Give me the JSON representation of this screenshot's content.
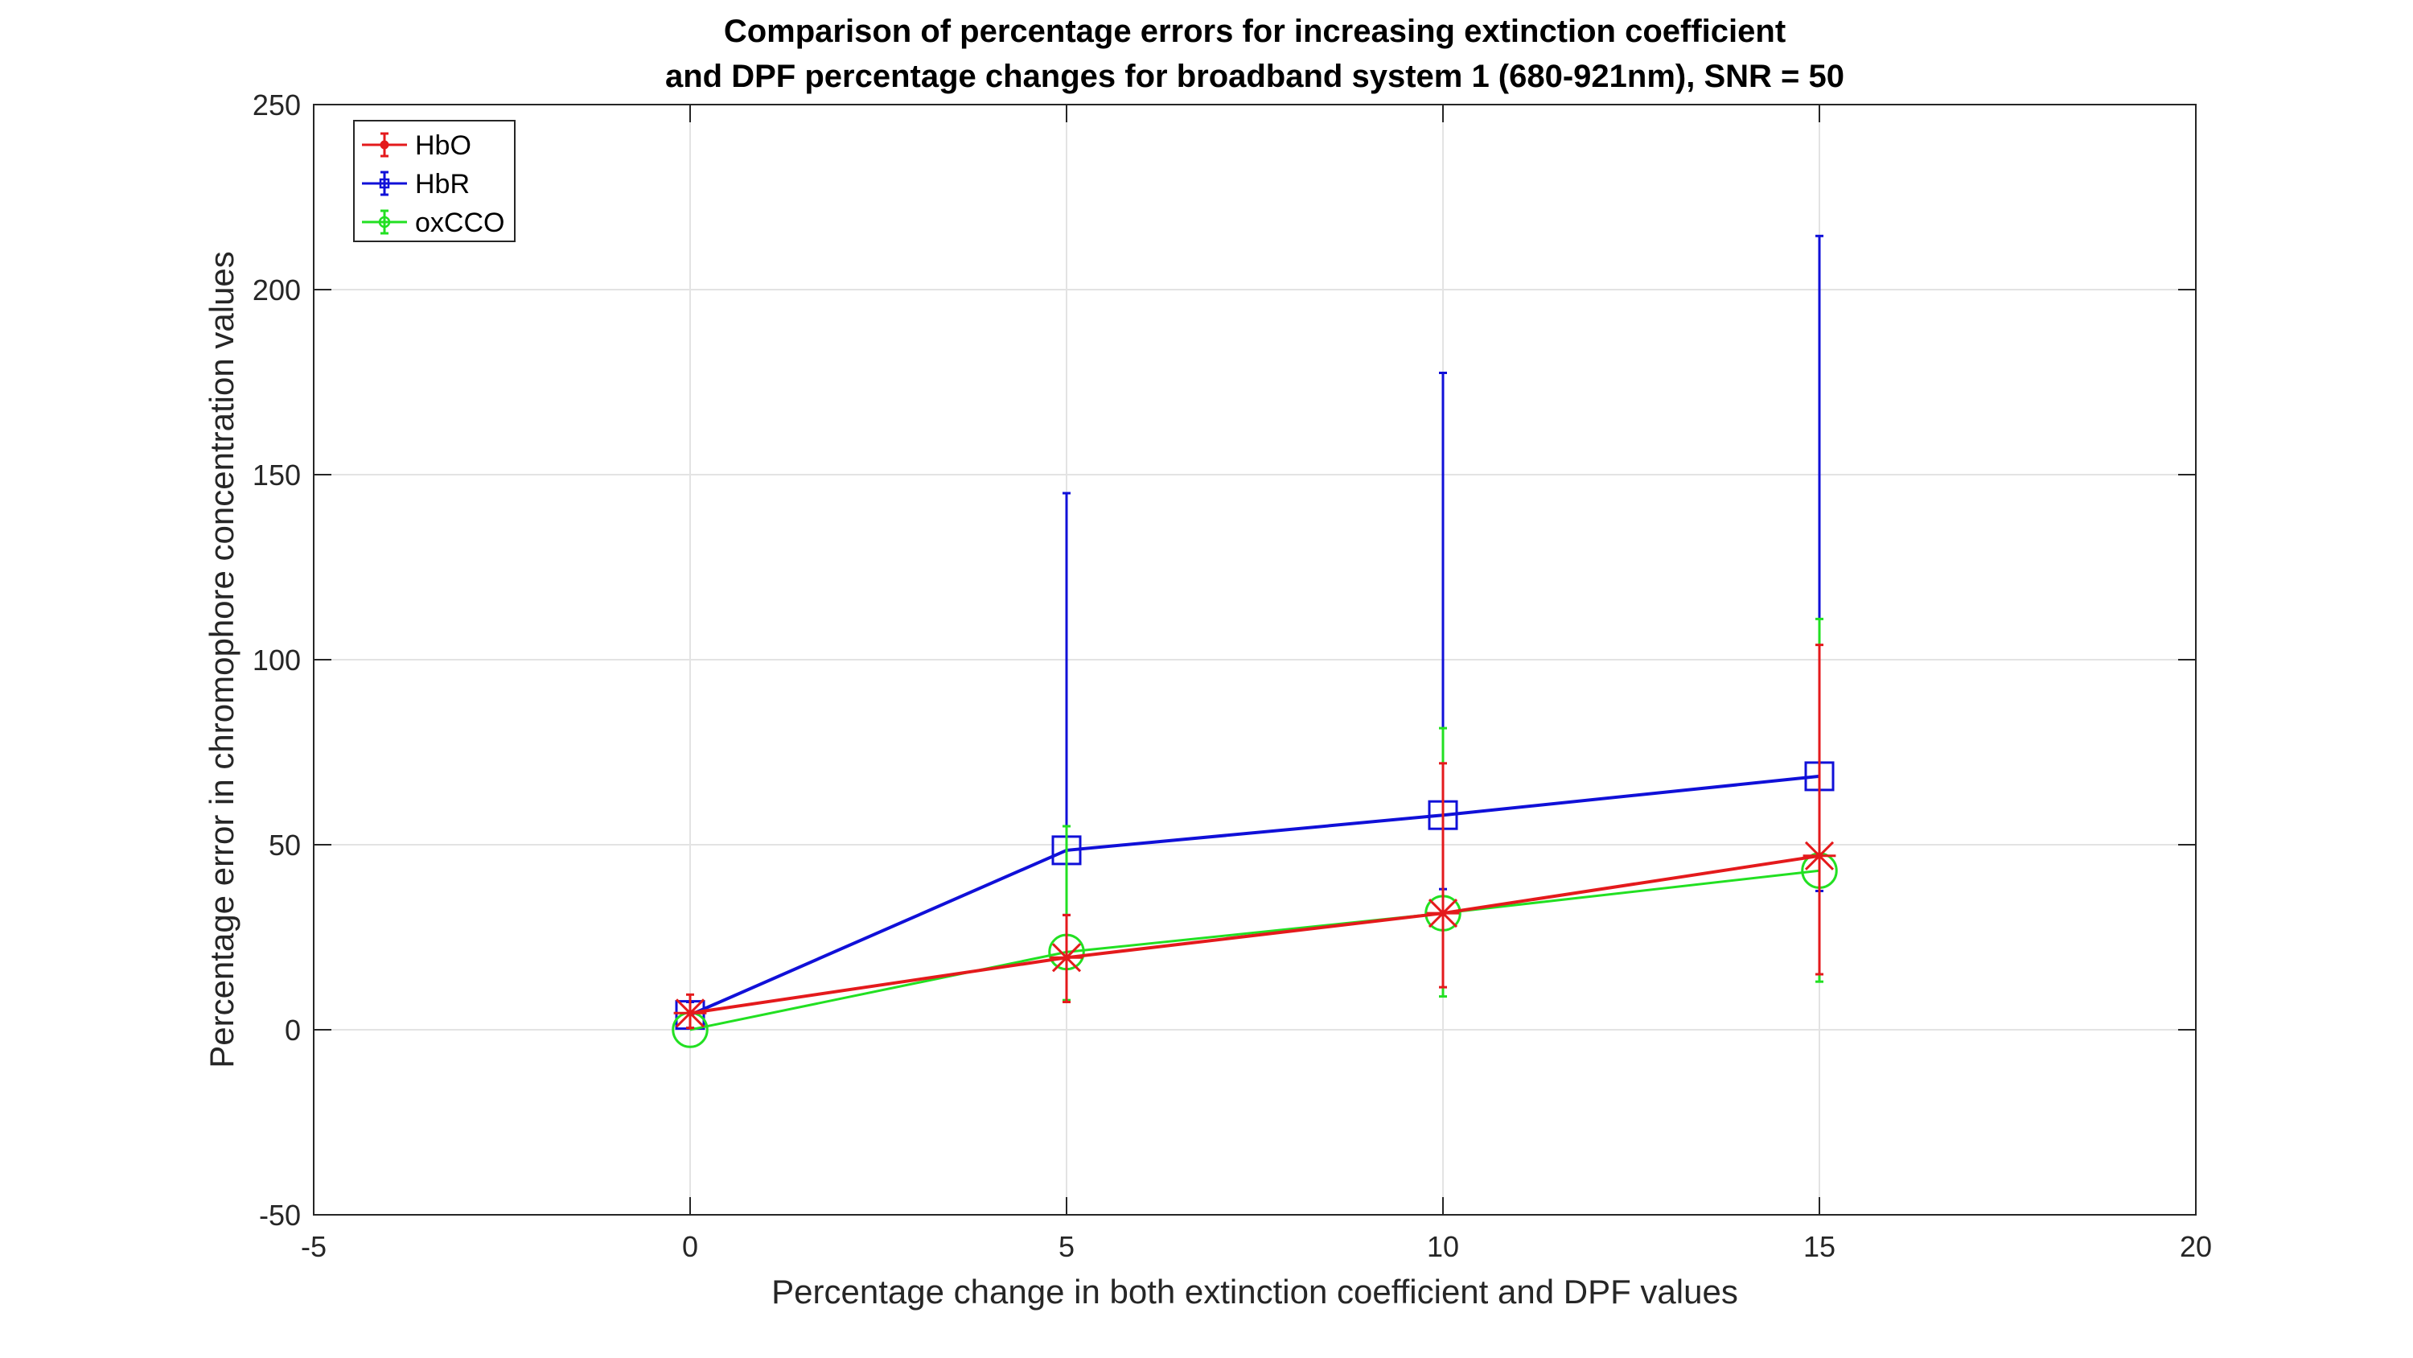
{
  "chart_data": {
    "type": "line",
    "title": [
      "Comparison of percentage errors for increasing extinction coefficient",
      "and DPF percentage changes for broadband system 1 (680-921nm), SNR = 50"
    ],
    "xlabel": "Percentage change in both extinction coefficient and DPF values",
    "ylabel": "Percentage error in chromophore concentration values",
    "xlim": [
      -5,
      20
    ],
    "ylim": [
      -50,
      250
    ],
    "xticks": [
      -5,
      0,
      5,
      10,
      15,
      20
    ],
    "yticks": [
      -50,
      0,
      50,
      100,
      150,
      200,
      250
    ],
    "grid": true,
    "legend_position": "top-left",
    "x": [
      0,
      5,
      10,
      15
    ],
    "series": [
      {
        "name": "HbO",
        "color": "#e41a1c",
        "marker": "asterisk",
        "values": [
          4.5,
          19.5,
          31.5,
          47
        ],
        "error_low": [
          0.5,
          7.5,
          11.5,
          15
        ],
        "error_high": [
          9.5,
          31,
          72,
          104
        ]
      },
      {
        "name": "HbR",
        "color": "#1010d8",
        "marker": "square",
        "values": [
          4,
          48.5,
          58,
          68.5
        ],
        "error_low": [
          0.5,
          31,
          38,
          37.5
        ],
        "error_high": [
          7.5,
          145,
          177.5,
          214.5
        ]
      },
      {
        "name": "oxCCO",
        "color": "#22e022",
        "marker": "circle",
        "values": [
          0,
          21,
          31.5,
          43
        ],
        "error_low": [
          0,
          8,
          9,
          13
        ],
        "error_high": [
          0,
          55,
          81.5,
          111
        ]
      }
    ]
  }
}
